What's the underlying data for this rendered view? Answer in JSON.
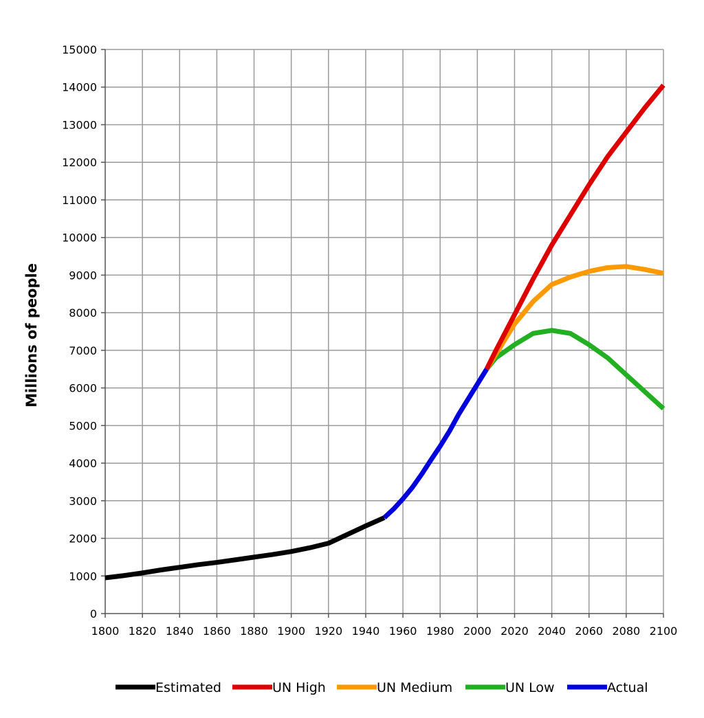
{
  "chart_data": {
    "type": "line",
    "title": "",
    "xlabel": "",
    "ylabel": "Millions of people",
    "xlim": [
      1800,
      2100
    ],
    "ylim": [
      0,
      15000
    ],
    "x_ticks": [
      1800,
      1820,
      1840,
      1860,
      1880,
      1900,
      1920,
      1940,
      1960,
      1980,
      2000,
      2020,
      2040,
      2060,
      2080,
      2100
    ],
    "y_ticks": [
      0,
      1000,
      2000,
      3000,
      4000,
      5000,
      6000,
      7000,
      8000,
      9000,
      10000,
      11000,
      12000,
      13000,
      14000,
      15000
    ],
    "grid": true,
    "legend_position": "bottom",
    "series": [
      {
        "name": "Estimated",
        "color": "#000000",
        "x": [
          1800,
          1810,
          1820,
          1830,
          1840,
          1850,
          1860,
          1870,
          1880,
          1890,
          1900,
          1910,
          1920,
          1930,
          1940,
          1950
        ],
        "y": [
          950,
          1010,
          1080,
          1160,
          1230,
          1300,
          1360,
          1430,
          1500,
          1570,
          1650,
          1750,
          1870,
          2100,
          2330,
          2550
        ]
      },
      {
        "name": "UN High",
        "color": "#dd0000",
        "x": [
          2005,
          2010,
          2020,
          2030,
          2040,
          2050,
          2060,
          2070,
          2080,
          2090,
          2100
        ],
        "y": [
          6500,
          7000,
          7950,
          8900,
          9800,
          10600,
          11400,
          12150,
          12800,
          13450,
          14050
        ]
      },
      {
        "name": "UN Medium",
        "color": "#ff9900",
        "x": [
          2005,
          2010,
          2020,
          2030,
          2040,
          2050,
          2060,
          2070,
          2080,
          2090,
          2100
        ],
        "y": [
          6500,
          6900,
          7700,
          8300,
          8750,
          8950,
          9100,
          9200,
          9230,
          9150,
          9050
        ]
      },
      {
        "name": "UN Low",
        "color": "#22b022",
        "x": [
          2005,
          2010,
          2020,
          2030,
          2040,
          2050,
          2060,
          2070,
          2080,
          2090,
          2100
        ],
        "y": [
          6500,
          6800,
          7150,
          7450,
          7530,
          7450,
          7150,
          6800,
          6350,
          5900,
          5450
        ]
      },
      {
        "name": "Actual",
        "color": "#0000dd",
        "x": [
          1950,
          1955,
          1960,
          1965,
          1970,
          1975,
          1980,
          1985,
          1990,
          1995,
          2000,
          2005
        ],
        "y": [
          2550,
          2780,
          3050,
          3350,
          3700,
          4080,
          4450,
          4850,
          5300,
          5700,
          6100,
          6500
        ]
      }
    ]
  }
}
